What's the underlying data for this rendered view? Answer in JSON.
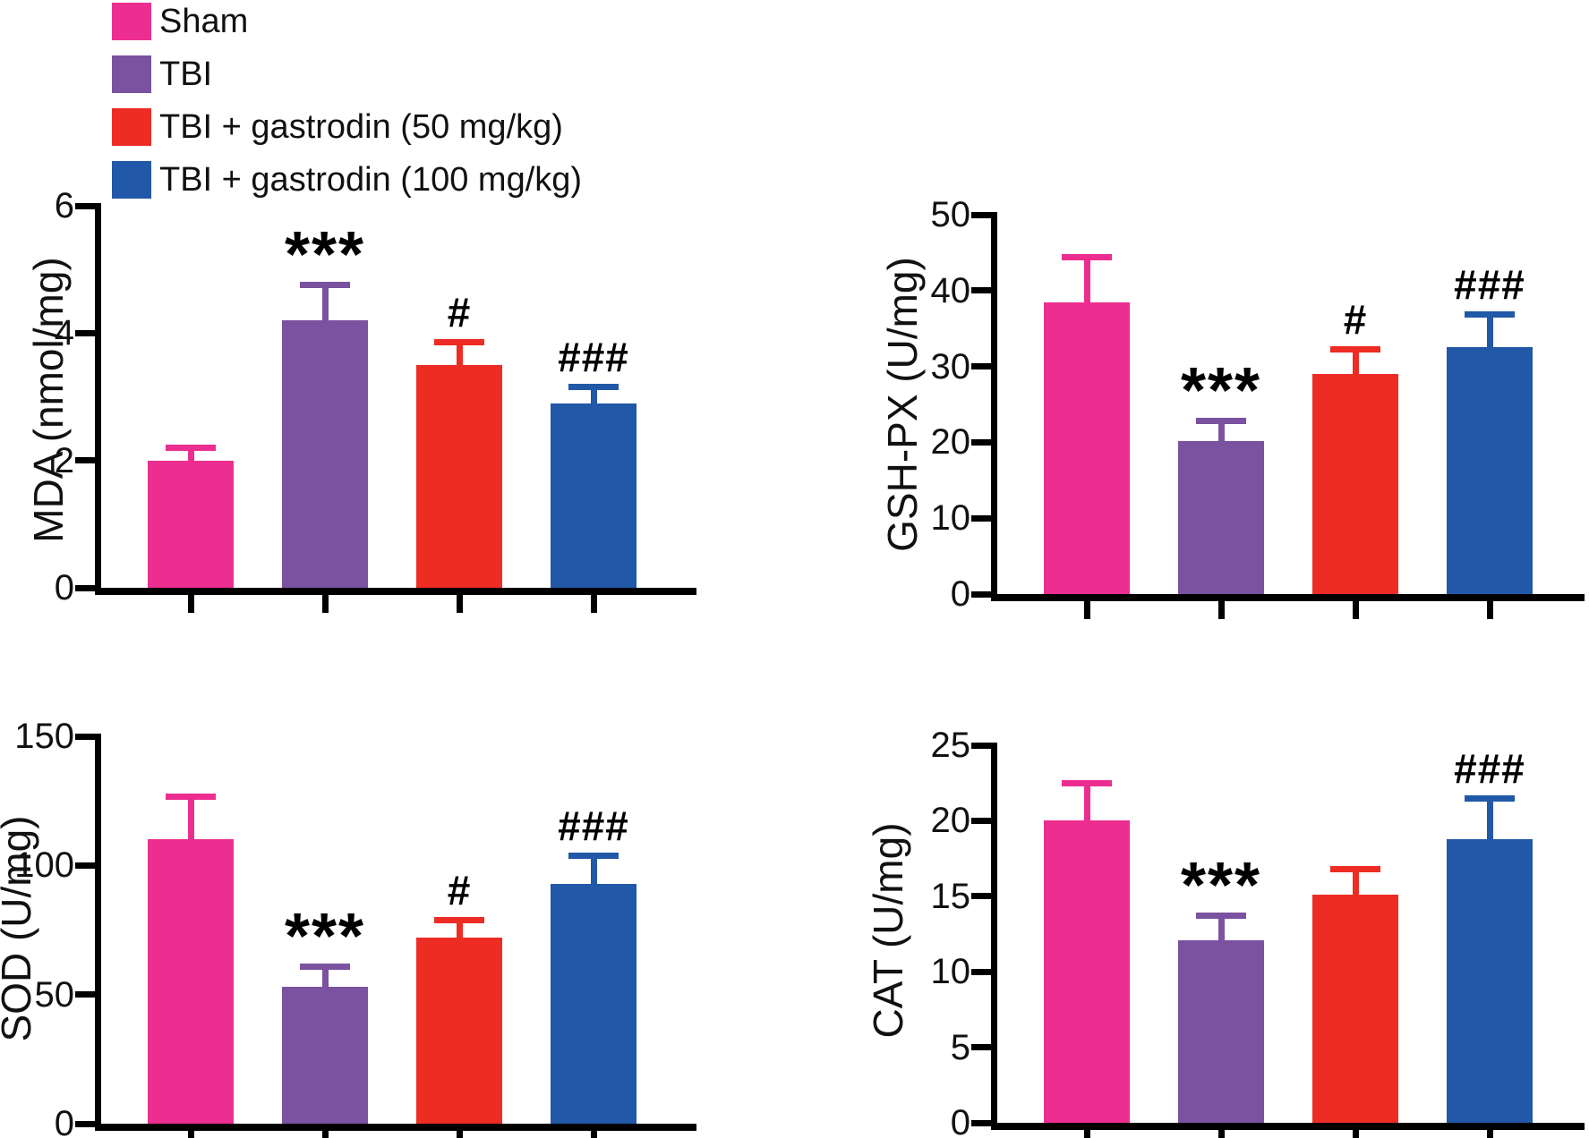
{
  "figure": {
    "legend": {
      "position": "top-left",
      "items": [
        {
          "label": "Sham",
          "color": "#ED2E91"
        },
        {
          "label": "TBI",
          "color": "#7B529F"
        },
        {
          "label": "TBI + gastrodin (50 mg/kg)",
          "color": "#ED2C24"
        },
        {
          "label": "TBI + gastrodin (100 mg/kg)",
          "color": "#2158A7"
        }
      ]
    }
  },
  "chart_data": [
    {
      "type": "bar",
      "name": "MDA",
      "ylabel": "MDA (nmol/mg)",
      "ylim": [
        0,
        6
      ],
      "yticks": [
        0,
        2,
        4,
        6
      ],
      "grid": false,
      "legend_position": "top-left-of-figure",
      "categories": [
        "Sham",
        "TBI",
        "TBI + gastrodin (50 mg/kg)",
        "TBI + gastrodin (100 mg/kg)"
      ],
      "bar_colors": [
        "#ED2E91",
        "#7B529F",
        "#ED2C24",
        "#2158A7"
      ],
      "values": [
        2.0,
        4.2,
        3.5,
        2.9
      ],
      "error_sd": [
        0.25,
        0.6,
        0.4,
        0.3
      ],
      "annotations": [
        "",
        "***",
        "#",
        "###"
      ]
    },
    {
      "type": "bar",
      "name": "GSH-PX",
      "ylabel": "GSH-PX (U/mg)",
      "ylim": [
        0,
        50
      ],
      "yticks": [
        0,
        10,
        20,
        30,
        40,
        50
      ],
      "grid": false,
      "categories": [
        "Sham",
        "TBI",
        "TBI + gastrodin (50 mg/kg)",
        "TBI + gastrodin (100 mg/kg)"
      ],
      "bar_colors": [
        "#ED2E91",
        "#7B529F",
        "#ED2C24",
        "#2158A7"
      ],
      "values": [
        38.5,
        20.2,
        29.0,
        32.5
      ],
      "error_sd": [
        6.3,
        3.0,
        3.7,
        4.8
      ],
      "annotations": [
        "",
        "***",
        "#",
        "###"
      ]
    },
    {
      "type": "bar",
      "name": "SOD",
      "ylabel": "SOD (U/mg)",
      "ylim": [
        0,
        150
      ],
      "yticks": [
        0,
        50,
        100,
        150
      ],
      "grid": false,
      "categories": [
        "Sham",
        "TBI",
        "TBI + gastrodin (50 mg/kg)",
        "TBI + gastrodin (100 mg/kg)"
      ],
      "bar_colors": [
        "#ED2E91",
        "#7B529F",
        "#ED2C24",
        "#2158A7"
      ],
      "values": [
        110,
        53,
        72,
        93
      ],
      "error_sd": [
        18,
        9,
        8,
        12
      ],
      "annotations": [
        "",
        "***",
        "#",
        "###"
      ]
    },
    {
      "type": "bar",
      "name": "CAT",
      "ylabel": "CAT (U/mg)",
      "ylim": [
        0,
        25
      ],
      "yticks": [
        0,
        5,
        10,
        15,
        20,
        25
      ],
      "grid": false,
      "categories": [
        "Sham",
        "TBI",
        "TBI + gastrodin (50 mg/kg)",
        "TBI + gastrodin (100 mg/kg)"
      ],
      "bar_colors": [
        "#ED2E91",
        "#7B529F",
        "#ED2C24",
        "#2158A7"
      ],
      "values": [
        20.0,
        12.1,
        15.1,
        18.8
      ],
      "error_sd": [
        2.7,
        1.8,
        1.9,
        2.9
      ],
      "annotations": [
        "",
        "***",
        "",
        "###"
      ]
    }
  ]
}
